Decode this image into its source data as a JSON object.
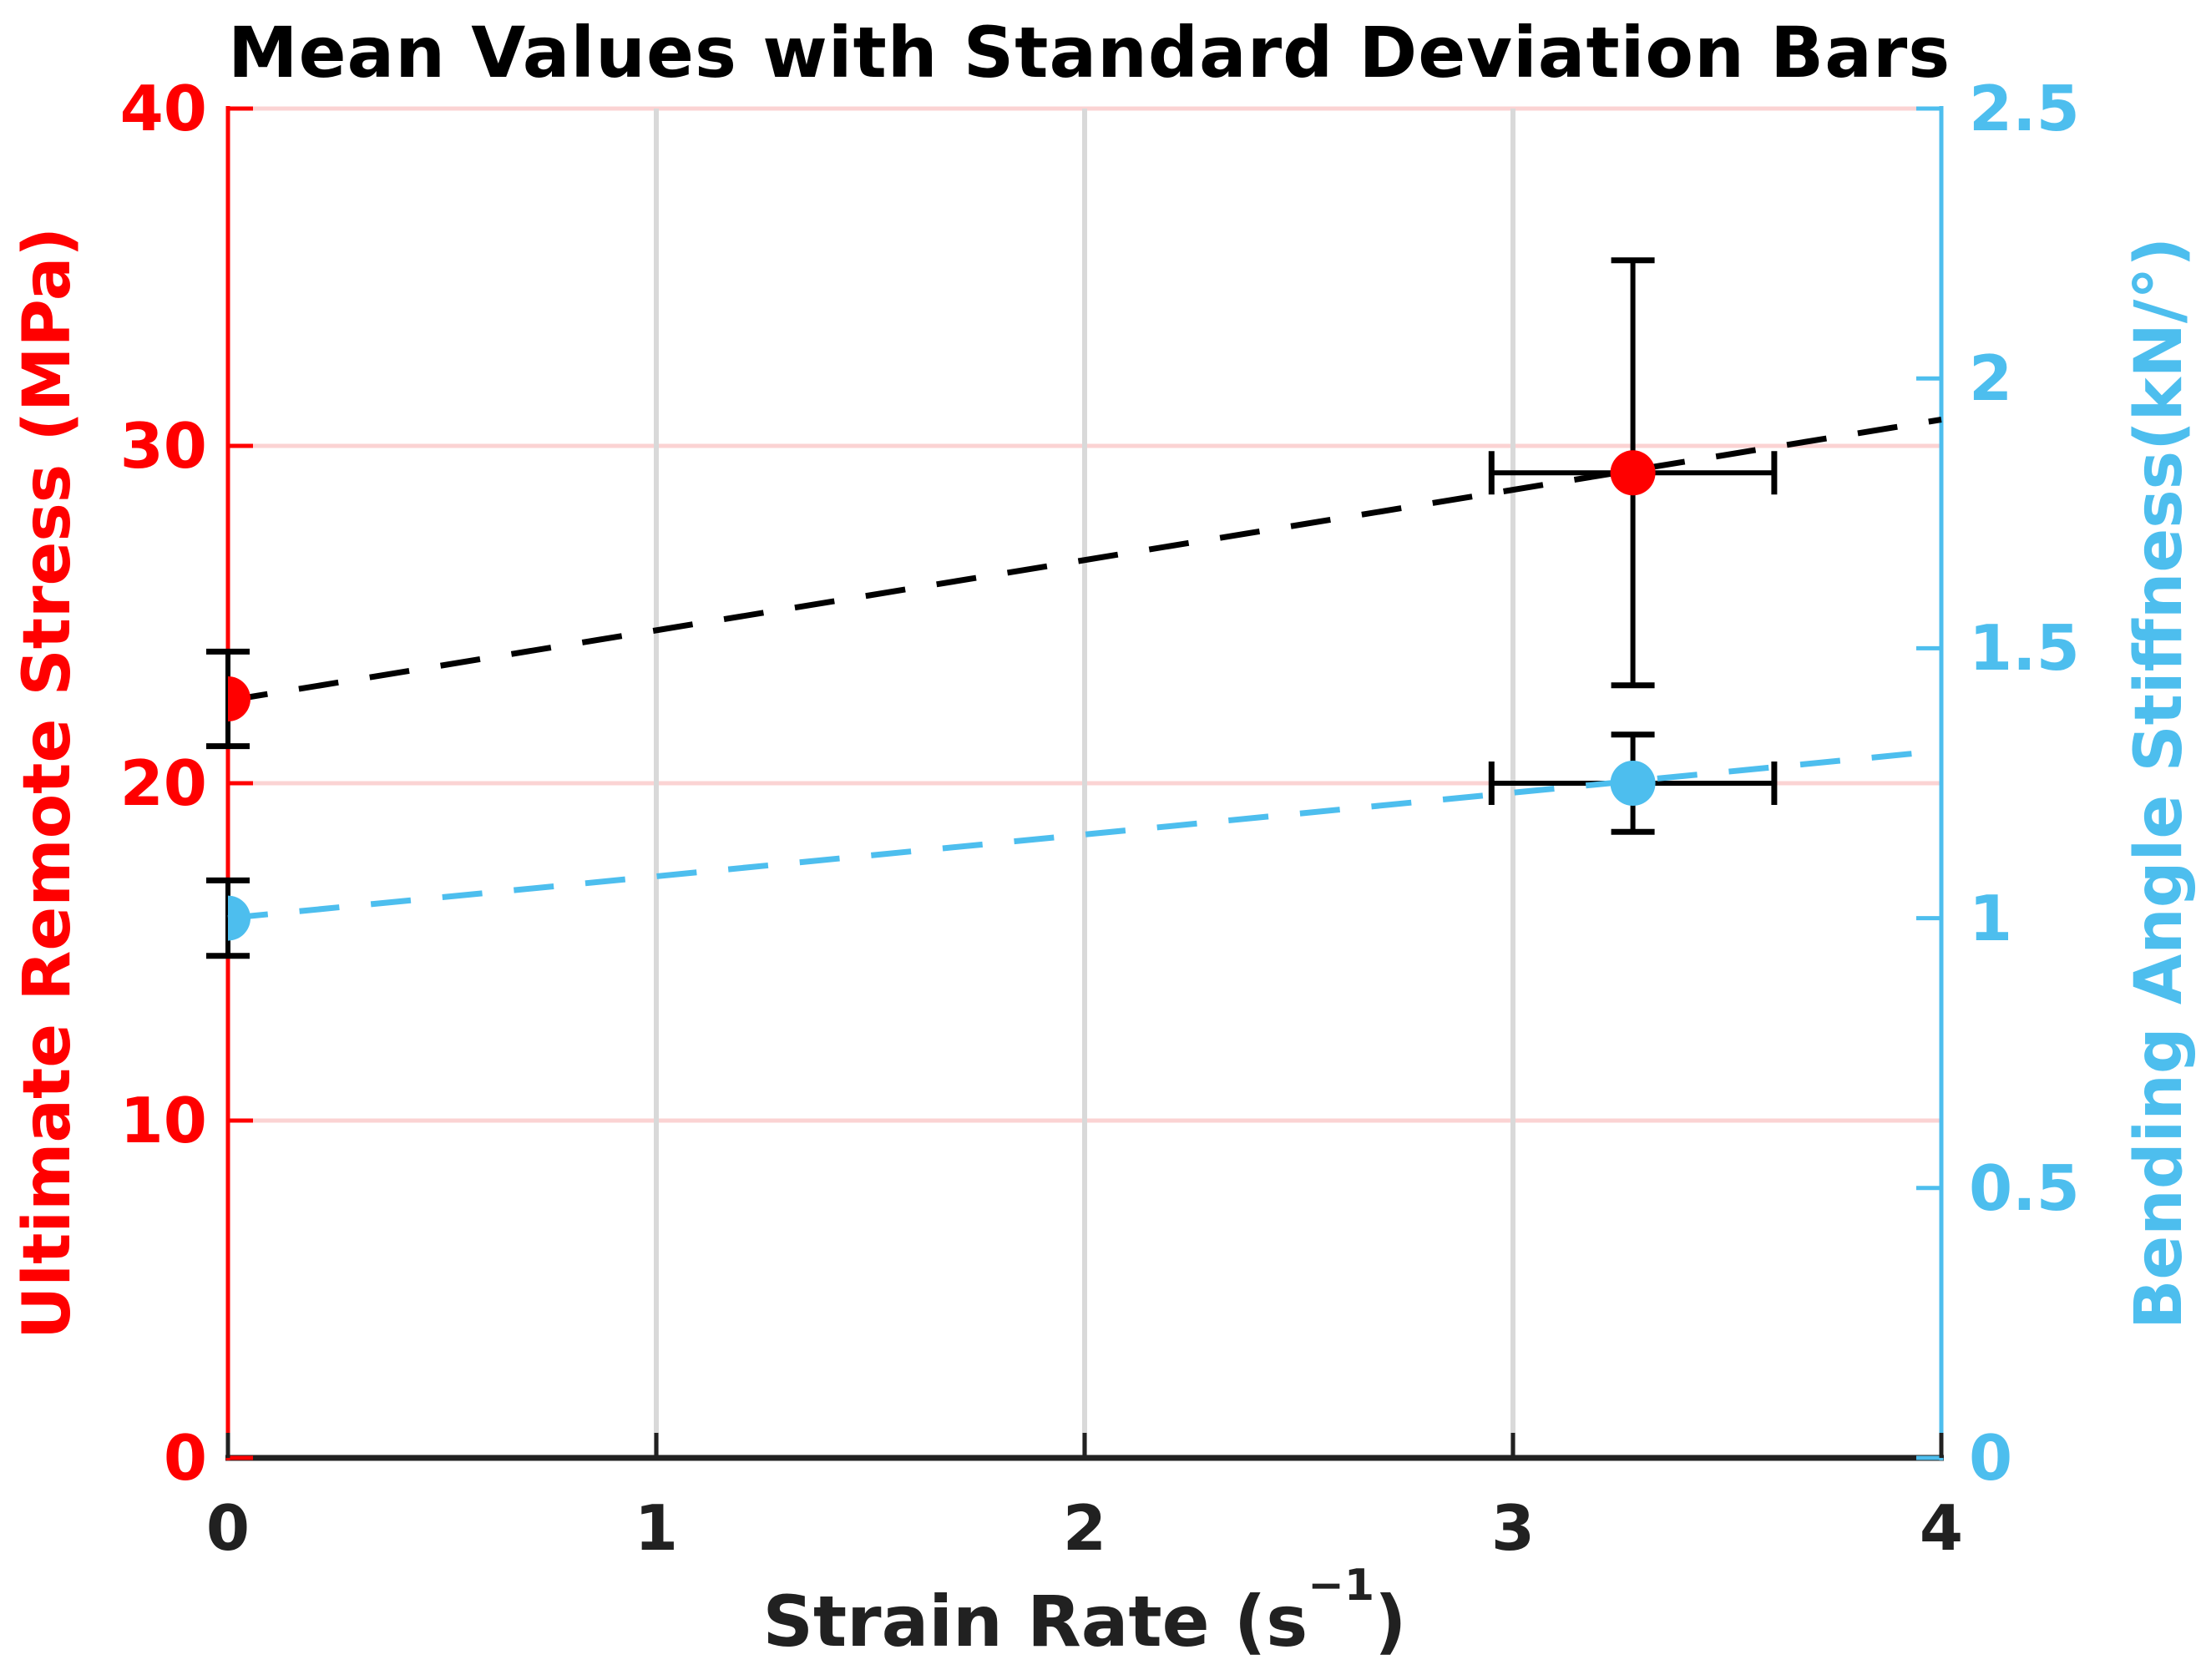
{
  "chart_data": {
    "type": "scatter",
    "title": "Mean Values with Standard Deviation Bars",
    "title_color": "#000000",
    "xlabel": "Strain Rate (s⁻¹)",
    "x_axis": {
      "label_parts": {
        "pre": "Strain Rate (s",
        "sup": "−1",
        "post": ")"
      },
      "color": "#212121",
      "range": [
        0,
        4
      ],
      "ticks": [
        {
          "v": 0,
          "label": "0"
        },
        {
          "v": 1,
          "label": "1"
        },
        {
          "v": 2,
          "label": "2"
        },
        {
          "v": 3,
          "label": "3"
        },
        {
          "v": 4,
          "label": "4"
        }
      ]
    },
    "left_axis": {
      "label": "Ultimate Remote Stress (MPa)",
      "color": "#ff0000",
      "range": [
        0,
        40
      ],
      "ticks": [
        {
          "v": 0,
          "label": "0"
        },
        {
          "v": 10,
          "label": "10"
        },
        {
          "v": 20,
          "label": "20"
        },
        {
          "v": 30,
          "label": "30"
        },
        {
          "v": 40,
          "label": "40"
        }
      ]
    },
    "right_axis": {
      "label": "Bending Angle Stiffness(kN/°)",
      "color": "#4dbeee",
      "range": [
        0,
        2.5
      ],
      "ticks": [
        {
          "v": 0,
          "label": "0"
        },
        {
          "v": 0.5,
          "label": "0.5"
        },
        {
          "v": 1,
          "label": "1"
        },
        {
          "v": 1.5,
          "label": "1.5"
        },
        {
          "v": 2,
          "label": "2"
        },
        {
          "v": 2.5,
          "label": "2.5"
        }
      ]
    },
    "grid": {
      "horizontal_color": "#fbd3d3",
      "vertical_color": "#d9d9d9"
    },
    "error_bar_color": "#000000",
    "series": [
      {
        "name": "Ultimate Remote Stress (MPa)",
        "axis": "left",
        "marker_color": "#ff0000",
        "points": [
          {
            "x": 0,
            "y": 22.5,
            "y_err": 1.4
          },
          {
            "x": 3.28,
            "y": 29.2,
            "y_err": 6.3,
            "x_err": 0.33
          }
        ],
        "trend_line": {
          "color": "#000000",
          "style": "dashed",
          "x": [
            0,
            4
          ],
          "y": [
            22.45,
            30.78
          ]
        }
      },
      {
        "name": "Bending Angle Stiffness (kN/°)",
        "axis": "right",
        "marker_color": "#4dbeee",
        "points": [
          {
            "x": 0,
            "y": 1.0,
            "y_err": 0.07
          },
          {
            "x": 3.28,
            "y": 1.25,
            "y_err": 0.09,
            "x_err": 0.33
          }
        ],
        "trend_line": {
          "color": "#4dbeee",
          "style": "dashed",
          "x": [
            0,
            4
          ],
          "y": [
            1.0,
            1.31
          ]
        }
      }
    ]
  }
}
